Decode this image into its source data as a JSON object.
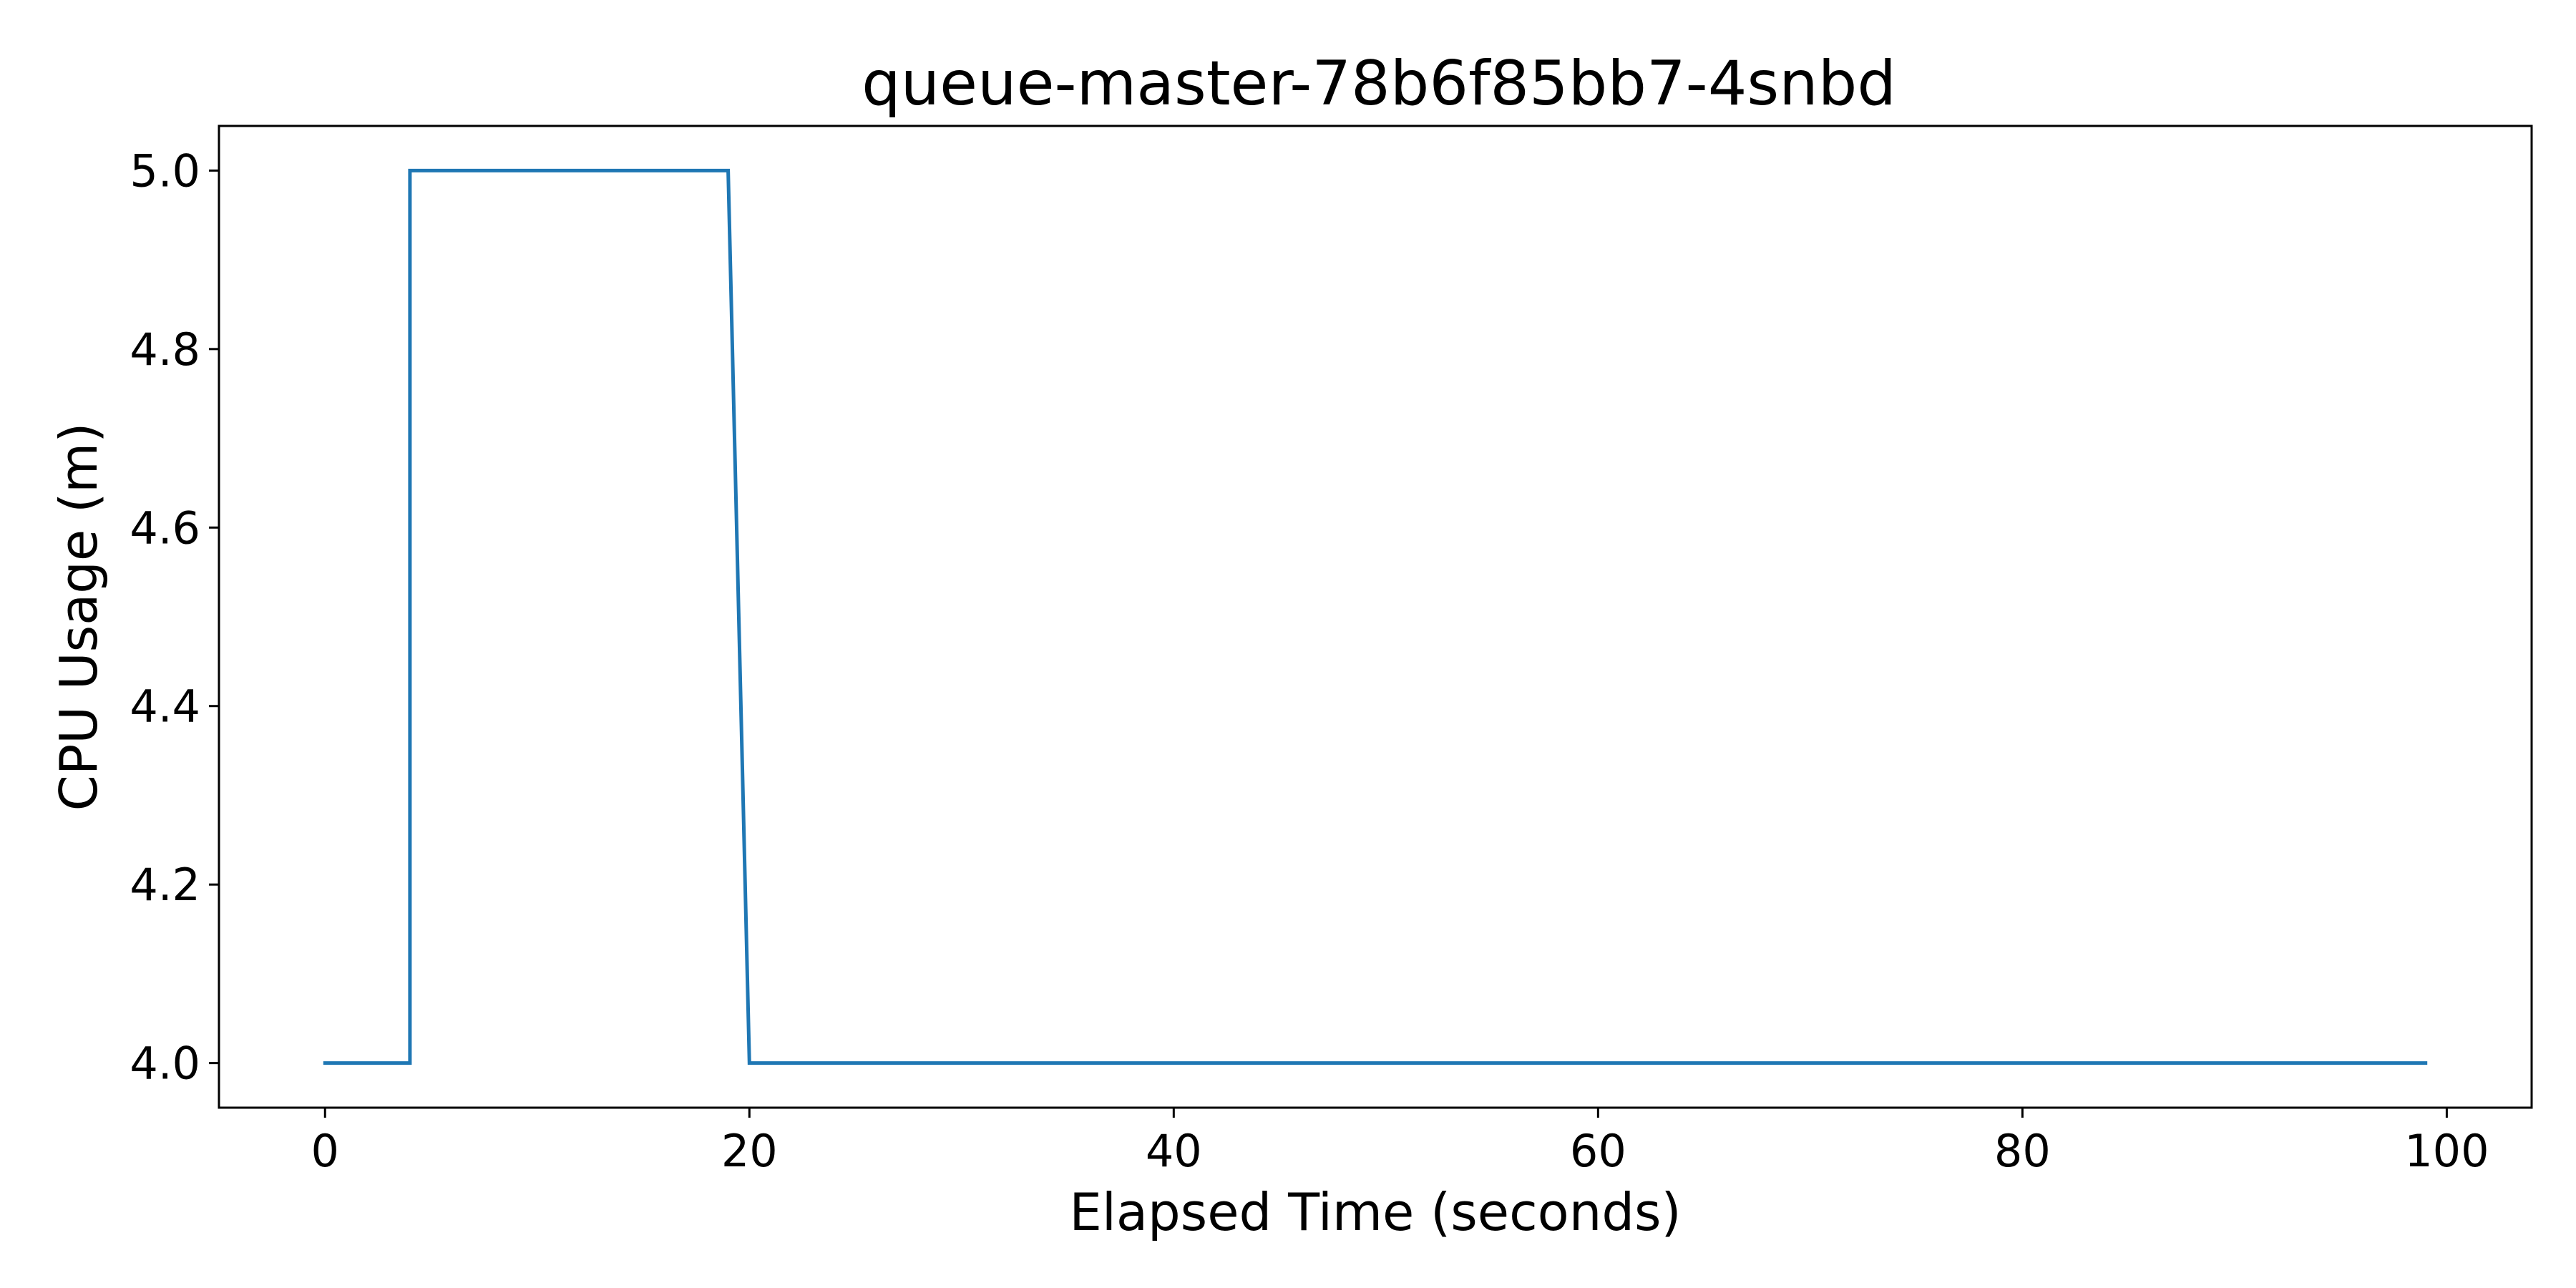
{
  "chart_data": {
    "type": "line",
    "title": "queue-master-78b6f85bb7-4snbd",
    "xlabel": "Elapsed Time (seconds)",
    "ylabel": "CPU Usage (m)",
    "xlim": [
      -5,
      104
    ],
    "ylim": [
      3.95,
      5.05
    ],
    "xticks": [
      0,
      20,
      40,
      60,
      80,
      100
    ],
    "xtick_labels": [
      "0",
      "20",
      "40",
      "60",
      "80",
      "100"
    ],
    "yticks": [
      4.0,
      4.2,
      4.4,
      4.6,
      4.8,
      5.0
    ],
    "ytick_labels": [
      "4.0",
      "4.2",
      "4.4",
      "4.6",
      "4.8",
      "5.0"
    ],
    "grid": false,
    "legend": "none",
    "series": [
      {
        "name": "queue-master-78b6f85bb7-4snbd",
        "color": "#1f77b4",
        "x": [
          0,
          4,
          4,
          19,
          20,
          99
        ],
        "y": [
          4.0,
          4.0,
          5.0,
          5.0,
          4.0,
          4.0
        ]
      }
    ]
  }
}
